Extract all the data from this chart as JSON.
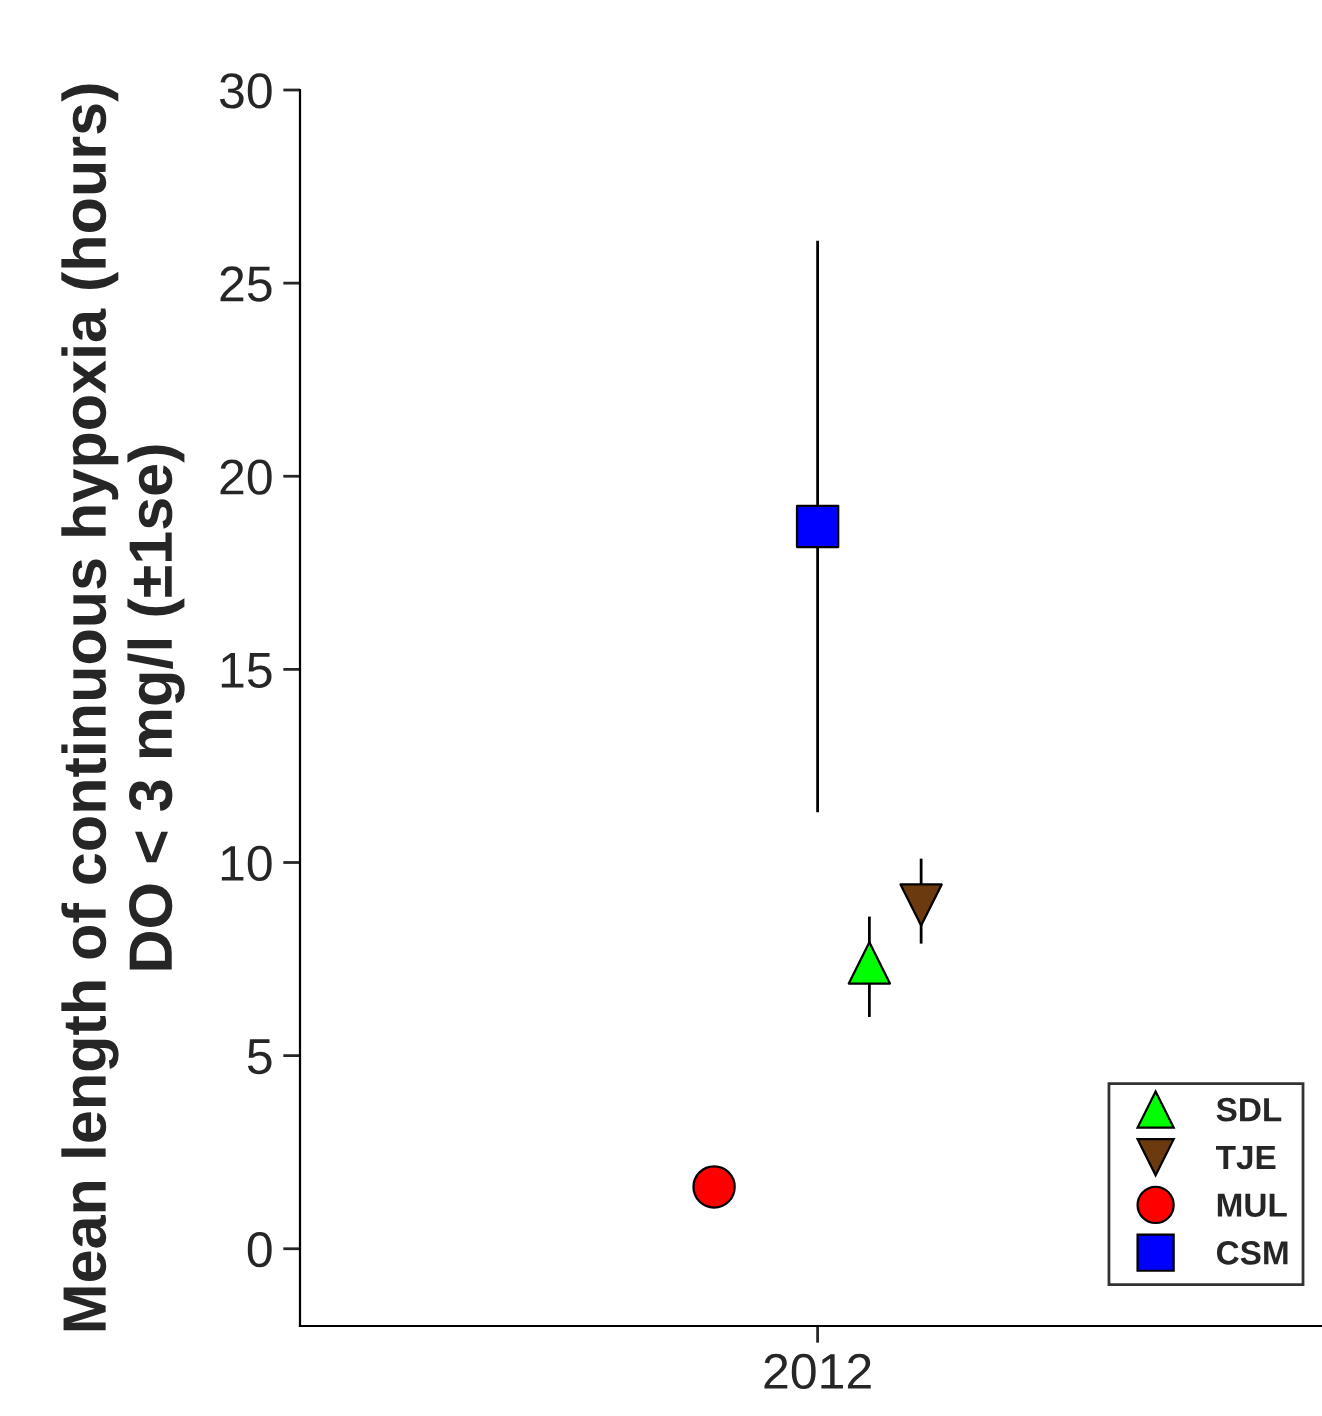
{
  "chart_data": {
    "type": "scatter",
    "ylabel": "Mean length of continuous hypoxia (hours)\nDO < 3 mg/l (±1se)",
    "categories": [
      "2012"
    ],
    "series": [
      {
        "name": "SDL",
        "color": "#00ff00",
        "marker": "triangle",
        "values": [
          7.4
        ],
        "errors": [
          [
            6.0,
            8.6
          ]
        ]
      },
      {
        "name": "TJE",
        "color": "#6b3a0e",
        "marker": "triangle_down",
        "values": [
          8.9
        ],
        "errors": [
          [
            7.9,
            10.1
          ]
        ]
      },
      {
        "name": "MUL",
        "color": "#ff0000",
        "marker": "circle",
        "values": [
          1.6
        ],
        "errors": [
          null
        ]
      },
      {
        "name": "CSM",
        "color": "#0000ff",
        "marker": "square",
        "values": [
          18.7
        ],
        "errors": [
          [
            11.3,
            26.1
          ]
        ]
      }
    ],
    "ylim": [
      -2,
      30
    ],
    "yticks": [
      0,
      5,
      10,
      15,
      20,
      25,
      30
    ],
    "grid": false,
    "legend": "bottom right"
  }
}
